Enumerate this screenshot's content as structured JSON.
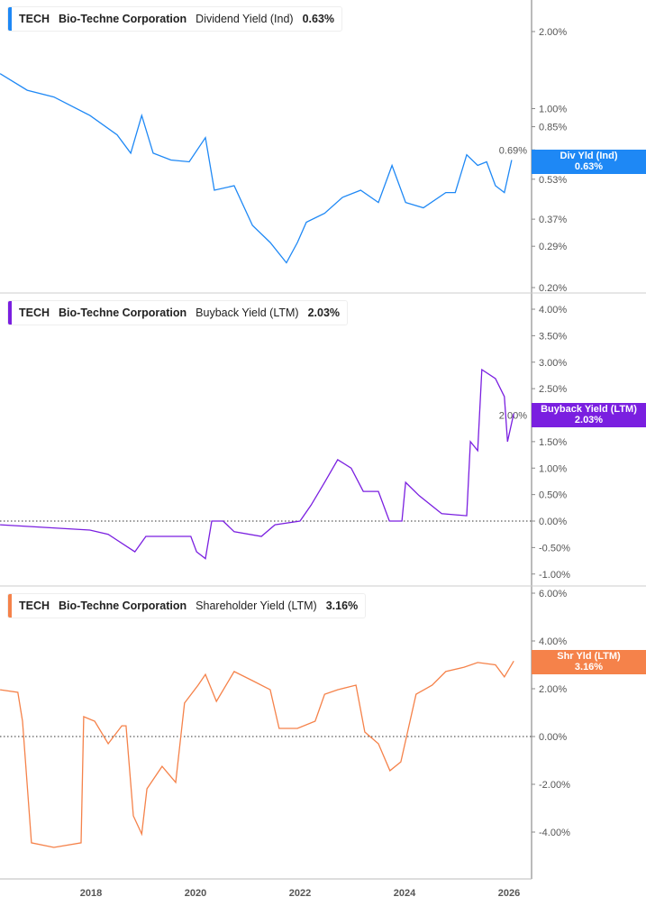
{
  "chart_data": [
    {
      "type": "line",
      "ticker": "TECH",
      "company": "Bio-Techne Corporation",
      "metric": "Dividend Yield (Ind)",
      "value_label": "0.63%",
      "badge": [
        "Div Yld (Ind)",
        "0.63%"
      ],
      "color": "#1e88f5",
      "yscale": "log",
      "ylim": [
        0.2,
        2.4
      ],
      "yticks": [
        2.0,
        1.0,
        0.85,
        0.69,
        0.53,
        0.37,
        0.29,
        0.2
      ],
      "ytick_labels": [
        "2.00%",
        "1.00%",
        "0.85%",
        "0.69%",
        "0.53%",
        "0.37%",
        "0.29%",
        "0.20%"
      ],
      "x": [
        2016.26,
        2016.78,
        2017.29,
        2017.98,
        2018.5,
        2018.76,
        2018.97,
        2019.19,
        2019.53,
        2019.88,
        2020.19,
        2020.36,
        2020.74,
        2021.09,
        2021.43,
        2021.74,
        2021.95,
        2022.12,
        2022.47,
        2022.81,
        2023.16,
        2023.5,
        2023.76,
        2024.02,
        2024.36,
        2024.79,
        2024.97,
        2025.19,
        2025.4,
        2025.57,
        2025.74,
        2025.91,
        2026.05
      ],
      "y": [
        1.37,
        1.18,
        1.11,
        0.94,
        0.79,
        0.67,
        0.94,
        0.67,
        0.63,
        0.62,
        0.77,
        0.48,
        0.5,
        0.35,
        0.3,
        0.25,
        0.3,
        0.36,
        0.39,
        0.45,
        0.48,
        0.43,
        0.6,
        0.43,
        0.41,
        0.47,
        0.47,
        0.66,
        0.6,
        0.62,
        0.5,
        0.47,
        0.63
      ]
    },
    {
      "type": "line",
      "ticker": "TECH",
      "company": "Bio-Techne Corporation",
      "metric": "Buyback Yield (LTM)",
      "value_label": "2.03%",
      "badge": [
        "Buyback Yield (LTM)",
        "2.03%"
      ],
      "color": "#7a1fe0",
      "yscale": "linear",
      "ylim": [
        -1.2,
        4.3
      ],
      "zero_line": true,
      "yticks": [
        4,
        3.5,
        3,
        2.5,
        2,
        1.5,
        1,
        0.5,
        0,
        -0.5,
        -1
      ],
      "ytick_labels": [
        "4.00%",
        "3.50%",
        "3.00%",
        "2.50%",
        "2.00%",
        "1.50%",
        "1.00%",
        "0.50%",
        "0.00%",
        "-0.50%",
        "-1.00%"
      ],
      "x": [
        2016.26,
        2017.98,
        2018.33,
        2018.84,
        2019.05,
        2019.53,
        2019.91,
        2020.02,
        2020.19,
        2020.31,
        2020.53,
        2020.74,
        2021.26,
        2021.52,
        2022.0,
        2022.21,
        2022.47,
        2022.72,
        2022.98,
        2023.21,
        2023.5,
        2023.71,
        2023.95,
        2024.02,
        2024.28,
        2024.71,
        2025.19,
        2025.26,
        2025.4,
        2025.48,
        2025.74,
        2025.91,
        2025.97,
        2026.09
      ],
      "y": [
        -0.07,
        -0.17,
        -0.25,
        -0.58,
        -0.29,
        -0.29,
        -0.29,
        -0.58,
        -0.71,
        0,
        0,
        -0.2,
        -0.29,
        -0.07,
        0,
        0.3,
        0.73,
        1.16,
        1.0,
        0.56,
        0.56,
        0,
        0,
        0.73,
        0.48,
        0.14,
        0.1,
        1.5,
        1.33,
        2.86,
        2.69,
        2.35,
        1.5,
        2.03
      ]
    },
    {
      "type": "line",
      "ticker": "TECH",
      "company": "Bio-Techne Corporation",
      "metric": "Shareholder Yield (LTM)",
      "value_label": "3.16%",
      "badge": [
        "Shr Yld (LTM)",
        "3.16%"
      ],
      "color": "#f5824a",
      "yscale": "linear",
      "ylim": [
        -5.9,
        6.4
      ],
      "zero_line": true,
      "yticks": [
        6,
        4,
        2,
        0,
        -2,
        -4
      ],
      "ytick_labels": [
        "6.00%",
        "4.00%",
        "2.00%",
        "0.00%",
        "-2.00%",
        "-4.00%"
      ],
      "x": [
        2016.26,
        2016.6,
        2016.69,
        2016.86,
        2017.29,
        2017.81,
        2017.86,
        2018.07,
        2018.33,
        2018.59,
        2018.67,
        2018.81,
        2018.97,
        2019.07,
        2019.36,
        2019.62,
        2019.79,
        2020.05,
        2020.19,
        2020.4,
        2020.74,
        2021.09,
        2021.43,
        2021.6,
        2021.95,
        2022.29,
        2022.47,
        2022.72,
        2023.07,
        2023.24,
        2023.5,
        2023.72,
        2023.93,
        2024.22,
        2024.53,
        2024.79,
        2025.14,
        2025.4,
        2025.74,
        2025.91,
        2026.09
      ],
      "y": [
        1.96,
        1.85,
        0.64,
        -4.45,
        -4.64,
        -4.45,
        0.83,
        0.64,
        -0.3,
        0.45,
        0.45,
        -3.32,
        -4.08,
        -2.19,
        -1.25,
        -1.92,
        1.4,
        2.15,
        2.6,
        1.47,
        2.72,
        2.34,
        1.96,
        0.34,
        0.34,
        0.64,
        1.77,
        1.96,
        2.15,
        0.19,
        -0.3,
        -1.43,
        -1.06,
        1.77,
        2.15,
        2.72,
        2.9,
        3.1,
        3.0,
        2.5,
        3.16
      ]
    }
  ],
  "x_axis": {
    "ticks": [
      2018,
      2020,
      2022,
      2024,
      2026
    ],
    "labels": [
      "2018",
      "2020",
      "2022",
      "2024",
      "2026"
    ],
    "range": [
      2016.26,
      2026.45
    ]
  }
}
